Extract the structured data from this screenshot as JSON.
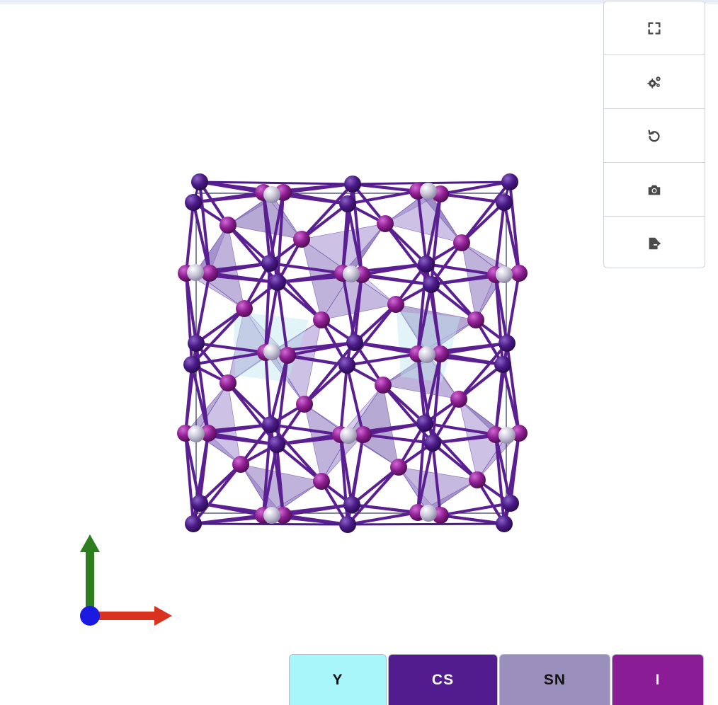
{
  "toolbar": {
    "buttons": [
      {
        "name": "fullscreen-button",
        "icon": "expand-icon"
      },
      {
        "name": "settings-button",
        "icon": "gears-icon"
      },
      {
        "name": "reset-view-button",
        "icon": "rotate-left-icon"
      },
      {
        "name": "screenshot-button",
        "icon": "camera-icon"
      },
      {
        "name": "export-button",
        "icon": "file-export-icon"
      }
    ]
  },
  "legend": {
    "items": [
      {
        "label": "Y",
        "color": "#a9f6fa",
        "text_color": "#111111"
      },
      {
        "label": "CS",
        "color": "#521c8e",
        "text_color": "#ffffff"
      },
      {
        "label": "SN",
        "color": "#9b8fbd",
        "text_color": "#111111"
      },
      {
        "label": "I",
        "color": "#8a1c96",
        "text_color": "#ffffff"
      }
    ]
  },
  "axes": {
    "x_color": "#d9321e",
    "y_color": "#2e7d1f",
    "z_color": "#1a1ae0"
  },
  "colors": {
    "cs_atom": "#4a1a86",
    "i_atom": "#8e1e92",
    "sn_atom": "#c9c6d8",
    "polyhedra": "#9a84c6",
    "cell_edge": "#2a3550"
  }
}
